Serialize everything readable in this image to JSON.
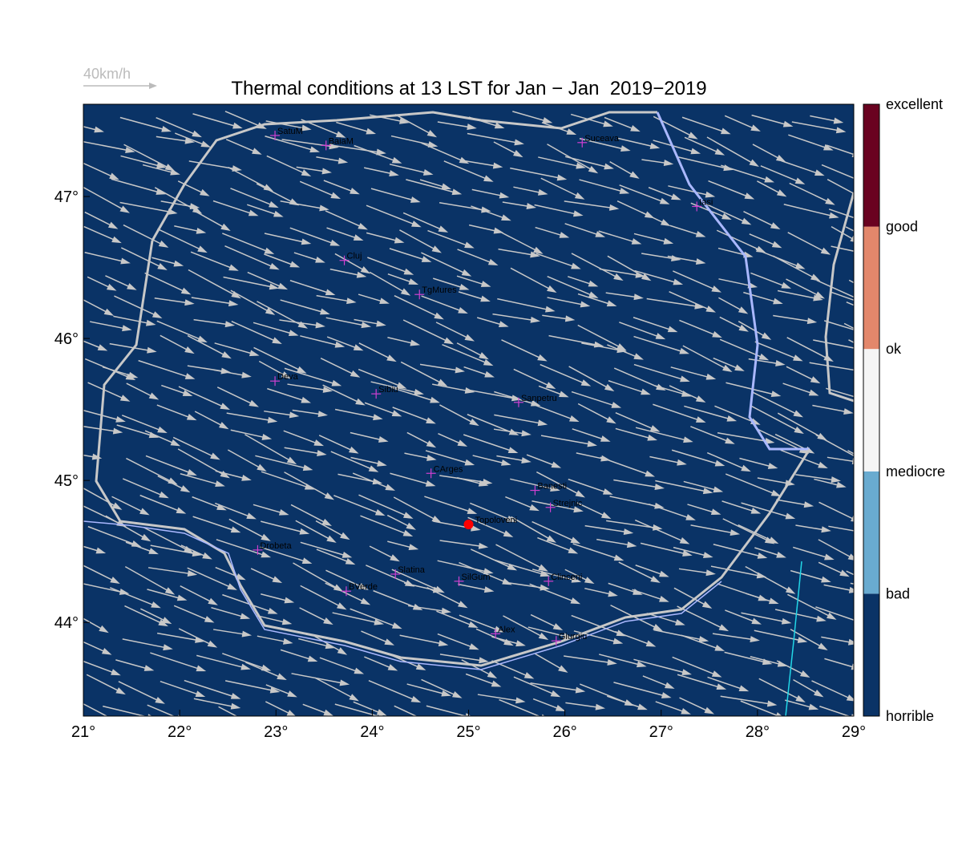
{
  "title": "Thermal conditions at 13 LST for Jan − Jan  2019−2019",
  "wind_legend": "40km/h",
  "extent": {
    "lon": [
      21,
      29
    ],
    "lat": [
      43.34,
      47.65
    ]
  },
  "x_ticks": [
    {
      "value": 21,
      "label": "21°"
    },
    {
      "value": 22,
      "label": "22°"
    },
    {
      "value": 23,
      "label": "23°"
    },
    {
      "value": 24,
      "label": "24°"
    },
    {
      "value": 25,
      "label": "25°"
    },
    {
      "value": 26,
      "label": "26°"
    },
    {
      "value": 27,
      "label": "27°"
    },
    {
      "value": 28,
      "label": "28°"
    },
    {
      "value": 29,
      "label": "29°"
    }
  ],
  "y_ticks": [
    {
      "value": 44,
      "label": "44°"
    },
    {
      "value": 45,
      "label": "45°"
    },
    {
      "value": 46,
      "label": "46°"
    },
    {
      "value": 47,
      "label": "47°"
    }
  ],
  "colorbar": {
    "labels": [
      "horrible",
      "bad",
      "mediocre",
      "ok",
      "good",
      "excellent"
    ],
    "colors": [
      "#0a3366",
      "#69abd0",
      "#f5f5f5",
      "#e3876b",
      "#6a0220"
    ]
  },
  "cities": [
    {
      "name": "SatuM",
      "lon": 22.99,
      "lat": 47.43
    },
    {
      "name": "BaiaM",
      "lon": 23.52,
      "lat": 47.36
    },
    {
      "name": "Suceava",
      "lon": 26.18,
      "lat": 47.38
    },
    {
      "name": "Iasi",
      "lon": 27.37,
      "lat": 46.93
    },
    {
      "name": "Cluj",
      "lon": 23.71,
      "lat": 46.55
    },
    {
      "name": "TgMures",
      "lon": 24.49,
      "lat": 46.31
    },
    {
      "name": "Deva",
      "lon": 22.99,
      "lat": 45.7
    },
    {
      "name": "Sibiu",
      "lon": 24.04,
      "lat": 45.61
    },
    {
      "name": "Sanpetru",
      "lon": 25.52,
      "lat": 45.55
    },
    {
      "name": "CArges",
      "lon": 24.61,
      "lat": 45.05
    },
    {
      "name": "Banesti",
      "lon": 25.69,
      "lat": 44.93
    },
    {
      "name": "Strejnic",
      "lon": 25.85,
      "lat": 44.81
    },
    {
      "name": "Drobeta",
      "lon": 22.81,
      "lat": 44.51
    },
    {
      "name": "Slatina",
      "lon": 24.24,
      "lat": 44.34
    },
    {
      "name": "SilGum",
      "lon": 24.9,
      "lat": 44.29
    },
    {
      "name": "Clinceni",
      "lon": 25.83,
      "lat": 44.29
    },
    {
      "name": "BVerde",
      "lon": 23.73,
      "lat": 44.22
    },
    {
      "name": "Alex",
      "lon": 25.28,
      "lat": 43.92
    },
    {
      "name": "Giurgiu",
      "lon": 25.91,
      "lat": 43.87
    }
  ],
  "reference_site": {
    "name": "Topoloveni",
    "lon": 25.0,
    "lat": 44.69
  }
}
